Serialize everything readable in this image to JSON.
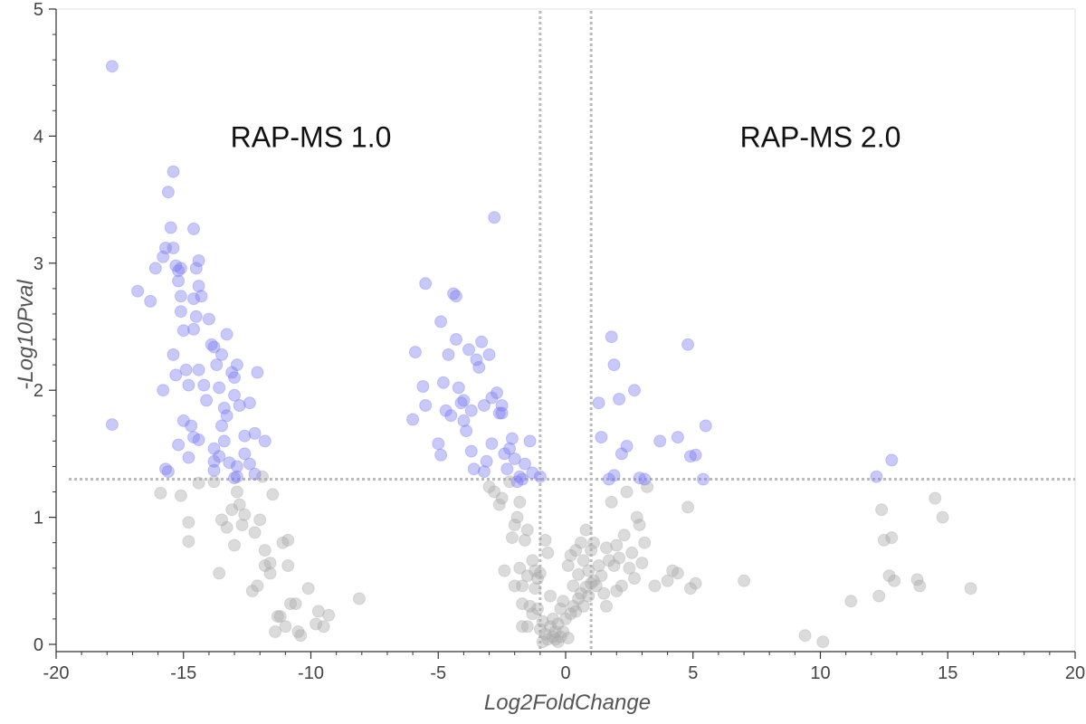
{
  "chart_data": {
    "type": "scatter",
    "title": "",
    "xlabel": "Log2FoldChange",
    "ylabel": "-Log10Pval",
    "xlim": [
      -20,
      20
    ],
    "ylim": [
      0,
      5
    ],
    "x_ticks": [
      -20,
      -15,
      -10,
      -5,
      0,
      5,
      10,
      15,
      20
    ],
    "y_ticks": [
      0,
      1,
      2,
      3,
      4,
      5
    ],
    "x_ticks_minor": [
      -19,
      -18,
      -17,
      -16,
      -14,
      -13,
      -12,
      -11,
      -9,
      -8,
      -7,
      -6,
      -4,
      -3,
      -2,
      -1,
      1,
      2,
      3,
      4,
      6,
      7,
      8,
      9,
      11,
      12,
      13,
      14,
      16,
      17,
      18,
      19
    ],
    "y_ticks_minor": [
      0.2,
      0.4,
      0.6,
      0.8,
      1.2,
      1.4,
      1.6,
      1.8,
      2.2,
      2.4,
      2.6,
      2.8,
      3.2,
      3.4,
      3.6,
      3.8,
      4.2,
      4.4,
      4.6,
      4.8
    ],
    "grid": false,
    "legend": "none",
    "threshold_lines": {
      "vertical_x": [
        -1,
        1
      ],
      "horizontal_y": 1.3,
      "color": "#bbbbbb",
      "style": "dotted"
    },
    "annotations": [
      {
        "text": "RAP-MS 1.0",
        "x": -10,
        "y": 4.0
      },
      {
        "text": "RAP-MS 2.0",
        "x": 10,
        "y": 4.0
      }
    ],
    "series": [
      {
        "color": "#7b7bf0",
        "points": [
          [
            -17.8,
            4.55
          ],
          [
            -17.8,
            1.73
          ],
          [
            -16.8,
            2.78
          ],
          [
            -16.3,
            2.7
          ],
          [
            -16.1,
            2.96
          ],
          [
            -15.8,
            3.05
          ],
          [
            -15.7,
            3.12
          ],
          [
            -15.6,
            3.56
          ],
          [
            -15.5,
            3.28
          ],
          [
            -15.4,
            3.72
          ],
          [
            -15.4,
            3.12
          ],
          [
            -15.3,
            2.98
          ],
          [
            -15.2,
            2.94
          ],
          [
            -15.2,
            2.86
          ],
          [
            -15.1,
            2.74
          ],
          [
            -15.1,
            2.62
          ],
          [
            -15.0,
            2.47
          ],
          [
            -15.4,
            2.28
          ],
          [
            -15.3,
            2.12
          ],
          [
            -15.1,
            2.96
          ],
          [
            -14.9,
            2.16
          ],
          [
            -14.8,
            2.04
          ],
          [
            -14.6,
            2.72
          ],
          [
            -14.5,
            2.96
          ],
          [
            -14.6,
            3.27
          ],
          [
            -14.4,
            3.02
          ],
          [
            -14.4,
            2.82
          ],
          [
            -14.3,
            2.74
          ],
          [
            -14.5,
            2.58
          ],
          [
            -14.6,
            2.48
          ],
          [
            -14.4,
            2.16
          ],
          [
            -14.2,
            2.04
          ],
          [
            -14.1,
            1.92
          ],
          [
            -14.0,
            2.56
          ],
          [
            -13.9,
            2.36
          ],
          [
            -13.8,
            2.34
          ],
          [
            -13.7,
            2.2
          ],
          [
            -13.5,
            2.28
          ],
          [
            -13.6,
            2.02
          ],
          [
            -13.4,
            1.86
          ],
          [
            -13.3,
            2.44
          ],
          [
            -13.1,
            2.14
          ],
          [
            -13.0,
            2.1
          ],
          [
            -13.0,
            1.96
          ],
          [
            -12.9,
            2.2
          ],
          [
            -12.8,
            1.88
          ],
          [
            -12.6,
            1.64
          ],
          [
            -12.4,
            1.9
          ],
          [
            -12.1,
            2.14
          ],
          [
            -12.2,
            1.66
          ],
          [
            -11.8,
            1.6
          ],
          [
            -15.8,
            2.0
          ],
          [
            -15.7,
            1.38
          ],
          [
            -15.6,
            1.36
          ],
          [
            -15.2,
            1.57
          ],
          [
            -15.0,
            1.76
          ],
          [
            -14.7,
            1.72
          ],
          [
            -14.6,
            1.63
          ],
          [
            -14.4,
            1.61
          ],
          [
            -14.8,
            1.47
          ],
          [
            -13.8,
            1.54
          ],
          [
            -13.8,
            1.44
          ],
          [
            -13.8,
            1.37
          ],
          [
            -13.6,
            1.48
          ],
          [
            -13.5,
            1.72
          ],
          [
            -13.4,
            1.6
          ],
          [
            -13.3,
            1.8
          ],
          [
            -13.2,
            1.43
          ],
          [
            -13.0,
            1.31
          ],
          [
            -12.9,
            1.4
          ],
          [
            -12.6,
            1.5
          ],
          [
            -12.4,
            1.42
          ],
          [
            -12.2,
            1.34
          ],
          [
            -12.9,
            1.32
          ],
          [
            -6.0,
            1.77
          ],
          [
            -5.9,
            2.3
          ],
          [
            -5.6,
            2.03
          ],
          [
            -5.5,
            1.88
          ],
          [
            -5.5,
            2.84
          ],
          [
            -5.0,
            1.58
          ],
          [
            -4.9,
            1.49
          ],
          [
            -4.9,
            2.54
          ],
          [
            -4.8,
            2.06
          ],
          [
            -4.7,
            1.84
          ],
          [
            -4.6,
            2.28
          ],
          [
            -4.5,
            1.8
          ],
          [
            -4.4,
            2.76
          ],
          [
            -4.3,
            2.74
          ],
          [
            -4.3,
            2.4
          ],
          [
            -4.2,
            2.02
          ],
          [
            -4.1,
            1.9
          ],
          [
            -4.0,
            1.76
          ],
          [
            -3.9,
            1.68
          ],
          [
            -3.8,
            2.32
          ],
          [
            -3.7,
            1.84
          ],
          [
            -3.7,
            1.52
          ],
          [
            -3.6,
            1.38
          ],
          [
            -3.5,
            2.24
          ],
          [
            -3.4,
            2.18
          ],
          [
            -3.3,
            2.38
          ],
          [
            -3.2,
            1.88
          ],
          [
            -3.1,
            1.44
          ],
          [
            -3.0,
            2.28
          ],
          [
            -2.9,
            1.94
          ],
          [
            -2.9,
            1.58
          ],
          [
            -2.8,
            3.36
          ],
          [
            -2.7,
            1.98
          ],
          [
            -2.6,
            1.82
          ],
          [
            -2.5,
            1.88
          ],
          [
            -2.4,
            1.5
          ],
          [
            -2.3,
            1.38
          ],
          [
            -2.2,
            1.54
          ],
          [
            -2.1,
            1.62
          ],
          [
            -2.0,
            1.46
          ],
          [
            -1.9,
            1.28
          ],
          [
            -1.8,
            1.32
          ],
          [
            -1.7,
            1.3
          ],
          [
            -1.6,
            1.42
          ],
          [
            -1.4,
            1.6
          ],
          [
            -1.3,
            1.35
          ],
          [
            -3.2,
            1.36
          ],
          [
            -2.5,
            1.82
          ],
          [
            -4.0,
            1.92
          ],
          [
            -1.0,
            1.32
          ],
          [
            1.3,
            1.9
          ],
          [
            1.4,
            1.63
          ],
          [
            1.7,
            1.3
          ],
          [
            1.8,
            2.42
          ],
          [
            1.9,
            2.2
          ],
          [
            1.9,
            1.33
          ],
          [
            2.1,
            1.93
          ],
          [
            2.2,
            1.5
          ],
          [
            2.4,
            1.56
          ],
          [
            2.7,
            2.0
          ],
          [
            2.9,
            1.31
          ],
          [
            3.1,
            1.3
          ],
          [
            3.7,
            1.6
          ],
          [
            4.4,
            1.63
          ],
          [
            4.8,
            2.36
          ],
          [
            4.9,
            1.48
          ],
          [
            5.1,
            1.49
          ],
          [
            5.4,
            1.3
          ],
          [
            5.5,
            1.72
          ],
          [
            12.2,
            1.32
          ],
          [
            12.8,
            1.45
          ]
        ]
      },
      {
        "color": "#aaaaaa",
        "points": [
          [
            -15.9,
            1.19
          ],
          [
            -15.1,
            1.17
          ],
          [
            -14.8,
            0.96
          ],
          [
            -14.8,
            0.81
          ],
          [
            -14.4,
            1.27
          ],
          [
            -13.6,
            0.56
          ],
          [
            -13.5,
            0.98
          ],
          [
            -13.3,
            0.92
          ],
          [
            -13.1,
            1.06
          ],
          [
            -13.0,
            0.78
          ],
          [
            -12.9,
            1.2
          ],
          [
            -12.8,
            1.1
          ],
          [
            -12.7,
            0.94
          ],
          [
            -12.6,
            1.02
          ],
          [
            -12.3,
            0.42
          ],
          [
            -12.1,
            0.46
          ],
          [
            -12.0,
            0.98
          ],
          [
            -11.8,
            0.74
          ],
          [
            -11.8,
            0.62
          ],
          [
            -11.6,
            0.64
          ],
          [
            -11.6,
            0.56
          ],
          [
            -11.5,
            1.18
          ],
          [
            -11.4,
            0.1
          ],
          [
            -11.3,
            0.22
          ],
          [
            -11.2,
            0.22
          ],
          [
            -11.1,
            0.8
          ],
          [
            -10.9,
            0.82
          ],
          [
            -10.9,
            0.62
          ],
          [
            -10.8,
            0.32
          ],
          [
            -10.6,
            0.32
          ],
          [
            -10.5,
            0.1
          ],
          [
            -10.4,
            0.07
          ],
          [
            -10.1,
            0.44
          ],
          [
            -9.8,
            0.16
          ],
          [
            -9.7,
            0.26
          ],
          [
            -9.5,
            0.14
          ],
          [
            -9.3,
            0.23
          ],
          [
            -8.1,
            0.36
          ],
          [
            -11.0,
            0.14
          ],
          [
            -12.2,
            0.88
          ],
          [
            -13.8,
            1.28
          ],
          [
            -11.9,
            1.32
          ],
          [
            -3.0,
            1.24
          ],
          [
            -2.8,
            1.2
          ],
          [
            -2.6,
            1.1
          ],
          [
            -2.5,
            1.15
          ],
          [
            -2.4,
            0.58
          ],
          [
            -2.2,
            1.28
          ],
          [
            -2.1,
            0.84
          ],
          [
            -2.0,
            0.94
          ],
          [
            -1.9,
            1.0
          ],
          [
            -1.8,
            1.12
          ],
          [
            -1.8,
            0.6
          ],
          [
            -1.7,
            0.46
          ],
          [
            -1.7,
            0.32
          ],
          [
            -1.7,
            0.14
          ],
          [
            -1.6,
            0.82
          ],
          [
            -1.5,
            0.9
          ],
          [
            -1.5,
            0.54
          ],
          [
            -1.4,
            0.3
          ],
          [
            -1.3,
            0.24
          ],
          [
            -1.3,
            0.66
          ],
          [
            -1.2,
            0.44
          ],
          [
            -1.1,
            0.52
          ],
          [
            -1.1,
            0.28
          ],
          [
            -1.0,
            0.12
          ],
          [
            -1.0,
            0.56
          ],
          [
            -0.9,
            0.02
          ],
          [
            -0.9,
            0.18
          ],
          [
            -0.8,
            0.08
          ],
          [
            -0.8,
            0.82
          ],
          [
            -0.7,
            0.72
          ],
          [
            -0.7,
            0.04
          ],
          [
            -0.6,
            0.14
          ],
          [
            -0.6,
            0.38
          ],
          [
            -0.5,
            0.06
          ],
          [
            -0.5,
            0.2
          ],
          [
            -0.4,
            0.04
          ],
          [
            -0.4,
            0.1
          ],
          [
            -0.3,
            0.02
          ],
          [
            -0.3,
            0.16
          ],
          [
            -0.2,
            0.06
          ],
          [
            -0.2,
            0.28
          ],
          [
            -0.1,
            0.1
          ],
          [
            -0.1,
            0.34
          ],
          [
            0.0,
            0.2
          ],
          [
            0.1,
            0.05
          ],
          [
            0.1,
            0.62
          ],
          [
            0.2,
            0.24
          ],
          [
            0.2,
            0.7
          ],
          [
            0.3,
            0.3
          ],
          [
            0.3,
            0.46
          ],
          [
            0.4,
            0.26
          ],
          [
            0.4,
            0.74
          ],
          [
            0.5,
            0.36
          ],
          [
            0.5,
            0.55
          ],
          [
            0.6,
            0.4
          ],
          [
            0.6,
            0.8
          ],
          [
            0.7,
            0.3
          ],
          [
            0.7,
            0.66
          ],
          [
            0.8,
            0.45
          ],
          [
            0.8,
            0.9
          ],
          [
            0.9,
            0.38
          ],
          [
            0.9,
            0.58
          ],
          [
            1.0,
            0.48
          ],
          [
            1.0,
            0.74
          ],
          [
            1.1,
            0.5
          ],
          [
            1.1,
            0.8
          ],
          [
            1.2,
            0.46
          ],
          [
            1.3,
            0.62
          ],
          [
            1.4,
            0.54
          ],
          [
            1.5,
            0.4
          ],
          [
            1.6,
            0.3
          ],
          [
            1.6,
            0.76
          ],
          [
            1.7,
            0.66
          ],
          [
            1.8,
            1.12
          ],
          [
            1.9,
            0.62
          ],
          [
            2.0,
            0.42
          ],
          [
            2.1,
            0.68
          ],
          [
            2.2,
            0.46
          ],
          [
            2.3,
            0.86
          ],
          [
            2.4,
            1.2
          ],
          [
            2.5,
            0.6
          ],
          [
            2.6,
            0.72
          ],
          [
            2.7,
            0.52
          ],
          [
            2.8,
            1.0
          ],
          [
            2.9,
            0.94
          ],
          [
            3.0,
            0.64
          ],
          [
            3.1,
            0.8
          ],
          [
            3.2,
            1.24
          ],
          [
            3.5,
            0.46
          ],
          [
            4.0,
            0.5
          ],
          [
            4.2,
            0.58
          ],
          [
            4.4,
            0.56
          ],
          [
            4.8,
            1.08
          ],
          [
            4.9,
            0.44
          ],
          [
            5.1,
            0.48
          ],
          [
            7.0,
            0.5
          ],
          [
            9.4,
            0.07
          ],
          [
            10.1,
            0.02
          ],
          [
            11.2,
            0.34
          ],
          [
            12.3,
            0.38
          ],
          [
            12.4,
            1.06
          ],
          [
            12.5,
            0.82
          ],
          [
            12.7,
            0.54
          ],
          [
            12.8,
            0.84
          ],
          [
            12.9,
            0.5
          ],
          [
            13.8,
            0.51
          ],
          [
            13.9,
            0.46
          ],
          [
            14.5,
            1.15
          ],
          [
            14.8,
            1.0
          ],
          [
            15.9,
            0.44
          ],
          [
            -1.5,
            0.14
          ],
          [
            -1.2,
            0.58
          ],
          [
            -2.0,
            0.46
          ],
          [
            2.0,
            0.78
          ]
        ]
      }
    ]
  }
}
